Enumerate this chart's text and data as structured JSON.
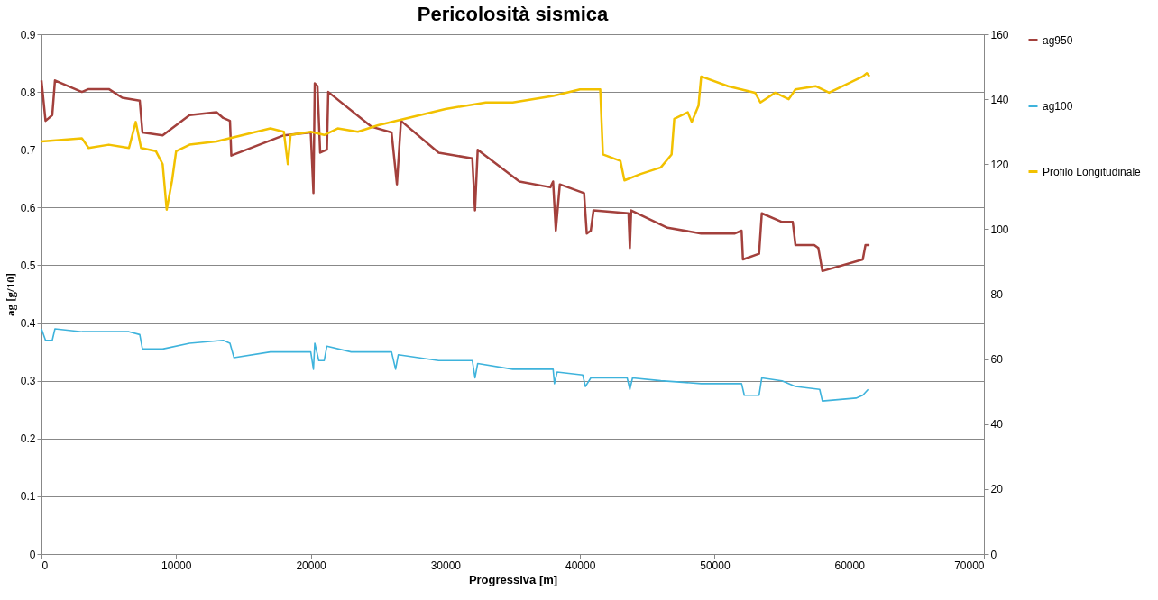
{
  "chart_data": {
    "type": "line",
    "title": "Pericolosità sismica",
    "xlabel": "Progressiva [m]",
    "ylabel": "ag [g/10]",
    "xlim": [
      0,
      70000
    ],
    "xticks": [
      0,
      10000,
      20000,
      30000,
      40000,
      50000,
      60000,
      70000
    ],
    "ylim": [
      0,
      0.9
    ],
    "yticks": [
      0,
      0.1,
      0.2,
      0.3,
      0.4,
      0.5,
      0.6,
      0.7,
      0.8,
      0.9
    ],
    "y2lim": [
      0,
      160
    ],
    "y2ticks": [
      0,
      20,
      40,
      60,
      80,
      100,
      120,
      140,
      160
    ],
    "grid": "y",
    "legend": "right",
    "line_style": "solid",
    "marker": "none",
    "series": [
      {
        "name": "ag950",
        "color": "#a3403c",
        "x": [
          0,
          300,
          800,
          1000,
          3000,
          3500,
          5000,
          6000,
          7300,
          7500,
          9000,
          11000,
          13000,
          13500,
          14000,
          14100,
          18000,
          20000,
          20200,
          20300,
          20500,
          20700,
          21200,
          21300,
          24500,
          26000,
          26400,
          26700,
          29500,
          32000,
          32200,
          32400,
          35500,
          37800,
          38000,
          38200,
          38500,
          40300,
          40500,
          40800,
          41000,
          43600,
          43700,
          43800,
          46500,
          49000,
          51500,
          52000,
          52100,
          53300,
          53500,
          55000,
          55800,
          56000,
          57400,
          57700,
          58000,
          61000,
          61200,
          61500
        ],
        "values": [
          0.82,
          0.75,
          0.76,
          0.82,
          0.8,
          0.805,
          0.805,
          0.79,
          0.785,
          0.73,
          0.725,
          0.76,
          0.765,
          0.755,
          0.75,
          0.69,
          0.725,
          0.73,
          0.625,
          0.815,
          0.81,
          0.695,
          0.7,
          0.8,
          0.74,
          0.73,
          0.64,
          0.75,
          0.695,
          0.685,
          0.595,
          0.7,
          0.645,
          0.635,
          0.645,
          0.56,
          0.64,
          0.625,
          0.555,
          0.56,
          0.595,
          0.59,
          0.53,
          0.595,
          0.565,
          0.555,
          0.555,
          0.56,
          0.51,
          0.52,
          0.59,
          0.575,
          0.575,
          0.535,
          0.535,
          0.53,
          0.49,
          0.51,
          0.535,
          0.535
        ]
      },
      {
        "name": "ag100",
        "color": "#3eb3dc",
        "x": [
          0,
          300,
          800,
          1000,
          3000,
          6500,
          7300,
          7500,
          9000,
          11000,
          13500,
          14000,
          14300,
          17000,
          20000,
          20200,
          20300,
          20600,
          21000,
          21200,
          23000,
          26000,
          26300,
          26500,
          29500,
          32000,
          32200,
          32400,
          35000,
          38000,
          38100,
          38300,
          40200,
          40400,
          40800,
          43500,
          43700,
          43900,
          46000,
          49000,
          52000,
          52200,
          53300,
          53500,
          55000,
          56000,
          57800,
          58000,
          60500,
          61000,
          61400
        ],
        "values": [
          0.39,
          0.37,
          0.37,
          0.39,
          0.385,
          0.385,
          0.38,
          0.355,
          0.355,
          0.365,
          0.37,
          0.365,
          0.34,
          0.35,
          0.35,
          0.32,
          0.365,
          0.335,
          0.335,
          0.36,
          0.35,
          0.35,
          0.32,
          0.345,
          0.335,
          0.335,
          0.305,
          0.33,
          0.32,
          0.32,
          0.295,
          0.315,
          0.31,
          0.29,
          0.305,
          0.305,
          0.285,
          0.305,
          0.3,
          0.295,
          0.295,
          0.275,
          0.275,
          0.305,
          0.3,
          0.29,
          0.285,
          0.265,
          0.27,
          0.275,
          0.285
        ]
      },
      {
        "name": "Profilo Longitudinale",
        "color": "#f2c100",
        "axis": "y2",
        "x": [
          0,
          3000,
          3500,
          5000,
          6500,
          7000,
          7400,
          8500,
          9000,
          9300,
          9700,
          10000,
          11000,
          13000,
          15000,
          17000,
          18000,
          18300,
          18500,
          20000,
          21000,
          22000,
          23500,
          25000,
          27000,
          30000,
          33000,
          35000,
          38000,
          40000,
          41500,
          41700,
          43000,
          43300,
          44500,
          46000,
          46800,
          47000,
          48000,
          48300,
          48800,
          49000,
          51000,
          53000,
          53400,
          54500,
          55500,
          56000,
          57500,
          58500,
          60000,
          61000,
          61300,
          61500
        ],
        "values": [
          127,
          128,
          125,
          126,
          125,
          133,
          125,
          124,
          120,
          106,
          115,
          124,
          126,
          127,
          129,
          131,
          130,
          120,
          129,
          130,
          129,
          131,
          130,
          132,
          134,
          137,
          139,
          139,
          141,
          143,
          143,
          123,
          121,
          115,
          117,
          119,
          123,
          134,
          136,
          133,
          138,
          147,
          144,
          142,
          139,
          142,
          140,
          143,
          144,
          142,
          145,
          147,
          148,
          147
        ]
      }
    ]
  }
}
